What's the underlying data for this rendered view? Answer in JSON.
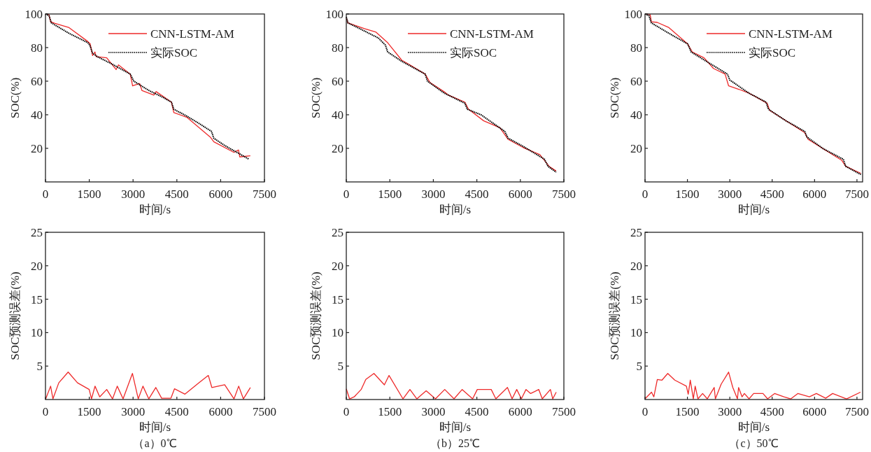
{
  "chart_data": [
    {
      "type": "line",
      "xlabel": "时间/s",
      "ylabel": "SOC(%)",
      "xlim": [
        0,
        7500
      ],
      "ylim": [
        0,
        100
      ],
      "xticks": [
        0,
        1500,
        3000,
        4500,
        6000,
        7500
      ],
      "yticks": [
        20,
        40,
        60,
        80,
        100
      ],
      "legend": "top right",
      "series": [
        {
          "name": "CNN-LSTM-AM",
          "color": "#ee2a2a",
          "line_style": "solid",
          "x": [
            0,
            121,
            177,
            323,
            806,
            1452,
            1532,
            1613,
            1694,
            1734,
            2097,
            2419,
            2500,
            2903,
            2984,
            3226,
            3306,
            3710,
            3790,
            4315,
            4395,
            4839,
            5645,
            5766,
            6452,
            6613,
            6653,
            7016
          ],
          "values": [
            100,
            99.6,
            95.4,
            94.4,
            91.9,
            83.6,
            82.2,
            75.3,
            77.4,
            74.6,
            73.9,
            66.9,
            69.7,
            64.2,
            57.2,
            58.6,
            54.4,
            51.7,
            53.8,
            47.5,
            41.3,
            38.5,
            26.7,
            23.9,
            17.6,
            19,
            14.9,
            15.6
          ]
        },
        {
          "name": "实际SOC",
          "color": "#000000",
          "line_style": "dotted",
          "x": [
            0,
            121,
            202,
            806,
            1452,
            1516,
            1613,
            1774,
            2258,
            2903,
            3024,
            3548,
            4032,
            4315,
            4395,
            4839,
            5242,
            5685,
            5766,
            6129,
            6452,
            6976
          ],
          "values": [
            100,
            98.9,
            94.7,
            88.5,
            82.9,
            81.5,
            76.7,
            74.6,
            70.4,
            64.2,
            60,
            54.4,
            50.3,
            47.5,
            43.3,
            39.2,
            35,
            30.1,
            26,
            21.8,
            18.6,
            13.5
          ]
        }
      ]
    },
    {
      "type": "line",
      "xlabel": "时间/s",
      "ylabel": "SOC(%)",
      "xlim": [
        0,
        7500
      ],
      "ylim": [
        0,
        100
      ],
      "xticks": [
        0,
        1500,
        3000,
        4500,
        6000,
        7500
      ],
      "yticks": [
        20,
        40,
        60,
        80,
        100
      ],
      "legend": "top right",
      "series": [
        {
          "name": "CNN-LSTM-AM",
          "color": "#ee2a2a",
          "line_style": "solid",
          "x": [
            0,
            56,
            621,
            1024,
            1427,
            1911,
            2194,
            2718,
            2879,
            3363,
            3524,
            4089,
            4210,
            4734,
            5298,
            5581,
            6105,
            6669,
            6992,
            7234
          ],
          "values": [
            97.5,
            94.7,
            91.3,
            89.2,
            82.9,
            72.5,
            69.7,
            64.2,
            59.3,
            53.8,
            51.7,
            47.5,
            43.3,
            36.4,
            32.2,
            25.3,
            20.4,
            16.3,
            9.3,
            6.5
          ]
        },
        {
          "name": "实际SOC",
          "color": "#000000",
          "line_style": "dotted",
          "x": [
            0,
            56,
            460,
            1105,
            1347,
            1427,
            1911,
            2718,
            2798,
            3363,
            4089,
            4169,
            4653,
            5460,
            5581,
            6105,
            6831,
            6952,
            7234
          ],
          "values": [
            98.2,
            94.7,
            91.3,
            85.7,
            81.5,
            77.4,
            71.8,
            64.2,
            60,
            53,
            46.8,
            43.3,
            39.9,
            30.1,
            26,
            21.1,
            13.5,
            9.3,
            5.8
          ]
        }
      ]
    },
    {
      "type": "line",
      "xlabel": "时间/s",
      "ylabel": "SOC(%)",
      "xlim": [
        0,
        7700
      ],
      "ylim": [
        0,
        100
      ],
      "xticks": [
        0,
        1500,
        3000,
        4500,
        6000,
        7500
      ],
      "yticks": [
        20,
        40,
        60,
        80,
        100
      ],
      "legend": "top right",
      "series": [
        {
          "name": "CNN-LSTM-AM",
          "color": "#ee2a2a",
          "line_style": "solid",
          "x": [
            0,
            182,
            224,
            431,
            845,
            1508,
            1674,
            2088,
            2419,
            2833,
            2958,
            3330,
            3663,
            4325,
            4408,
            5650,
            5774,
            6967,
            7100,
            7639
          ],
          "values": [
            100,
            99.6,
            95.4,
            95,
            91.9,
            82.2,
            77.4,
            73.9,
            67.6,
            64.2,
            57.2,
            55.1,
            53,
            46.8,
            42.6,
            29.4,
            25.3,
            12.8,
            9.3,
            5.1
          ]
        },
        {
          "name": "实际SOC",
          "color": "#000000",
          "line_style": "dotted",
          "x": [
            0,
            141,
            224,
            845,
            1508,
            1633,
            2171,
            2917,
            3000,
            3663,
            4284,
            4367,
            4988,
            5650,
            5733,
            6313,
            7017,
            7100,
            7639
          ],
          "values": [
            100,
            98.9,
            94.7,
            88.5,
            82.2,
            77.4,
            71.8,
            64.2,
            60.7,
            53,
            47.5,
            43.3,
            36.4,
            30.1,
            26.7,
            19.7,
            13.5,
            9.3,
            4.4
          ]
        }
      ]
    },
    {
      "type": "line",
      "xlabel": "时间/s",
      "ylabel": "SOC预测误差(%)",
      "xlim": [
        0,
        7500
      ],
      "ylim": [
        0,
        25
      ],
      "xticks": [
        0,
        1500,
        3000,
        4500,
        6000,
        7500
      ],
      "yticks": [
        5,
        10,
        15,
        20,
        25
      ],
      "annotations": [
        "（a）0℃"
      ],
      "series": [
        {
          "color": "#ee2a2a",
          "line_style": "solid",
          "x": [
            0,
            176,
            256,
            456,
            777,
            1097,
            1497,
            1577,
            1697,
            1858,
            2098,
            2298,
            2458,
            2658,
            2978,
            3178,
            3338,
            3538,
            3778,
            3978,
            4298,
            4418,
            4778,
            5258,
            5578,
            5698,
            6138,
            6458,
            6618,
            6778,
            7018
          ],
          "values": [
            0,
            2.0,
            0.1,
            2.5,
            4.1,
            2.5,
            1.5,
            0.1,
            2.0,
            0.4,
            1.5,
            0.1,
            2.0,
            0.1,
            3.9,
            0.1,
            2.0,
            0.1,
            1.8,
            0.2,
            0.2,
            1.6,
            0.8,
            2.5,
            3.6,
            1.8,
            2.2,
            0.1,
            2.0,
            0.1,
            1.8
          ]
        }
      ]
    },
    {
      "type": "line",
      "xlabel": "时间/s",
      "ylabel": "SOC预测误差(%)",
      "xlim": [
        0,
        7500
      ],
      "ylim": [
        0,
        25
      ],
      "xticks": [
        0,
        1500,
        3000,
        4500,
        6000,
        7500
      ],
      "yticks": [
        5,
        10,
        15,
        20,
        25
      ],
      "annotations": [
        "（b）25℃"
      ],
      "series": [
        {
          "color": "#ee2a2a",
          "line_style": "solid",
          "x": [
            0,
            112,
            272,
            512,
            673,
            953,
            1313,
            1473,
            1953,
            2193,
            2433,
            2753,
            3073,
            3393,
            3714,
            3994,
            4354,
            4515,
            4995,
            5155,
            5555,
            5715,
            5875,
            6035,
            6195,
            6355,
            6635,
            6755,
            7036,
            7116,
            7236
          ],
          "values": [
            1.6,
            0.1,
            0.4,
            1.5,
            3.0,
            3.9,
            2.2,
            3.6,
            0.1,
            1.5,
            0.1,
            1.3,
            0.1,
            1.5,
            0.1,
            1.5,
            0.1,
            1.5,
            1.5,
            0.1,
            1.8,
            0.1,
            1.5,
            0.1,
            1.5,
            0.9,
            1.5,
            0.1,
            1.5,
            0.1,
            1.1
          ]
        }
      ]
    },
    {
      "type": "line",
      "xlabel": "时间/s",
      "ylabel": "SOC预测误差(%)",
      "xlim": [
        0,
        7700
      ],
      "ylim": [
        0,
        25
      ],
      "xticks": [
        0,
        1500,
        3000,
        4500,
        6000,
        7500
      ],
      "yticks": [
        5,
        10,
        15,
        20,
        25
      ],
      "annotations": [
        "（c）50℃"
      ],
      "series": [
        {
          "color": "#ee2a2a",
          "line_style": "solid",
          "x": [
            0,
            230,
            312,
            435,
            600,
            805,
            1052,
            1463,
            1528,
            1602,
            1709,
            1775,
            1873,
            2038,
            2202,
            2448,
            2490,
            2695,
            2958,
            3106,
            3270,
            3311,
            3434,
            3516,
            3681,
            3845,
            4174,
            4338,
            4585,
            4914,
            5160,
            5407,
            5818,
            6064,
            6393,
            6639,
            7132,
            7625
          ],
          "values": [
            0.1,
            1.1,
            0.4,
            3.0,
            2.9,
            3.9,
            2.9,
            2.0,
            0.8,
            2.9,
            0.1,
            2.0,
            0.1,
            0.9,
            0.1,
            1.8,
            0.1,
            2.3,
            4.1,
            1.8,
            0.1,
            1.8,
            0.4,
            0.9,
            0.1,
            0.9,
            0.9,
            0.1,
            0.9,
            0.4,
            0.1,
            0.9,
            0.4,
            0.9,
            0.2,
            0.9,
            0.1,
            1.1
          ]
        }
      ]
    }
  ]
}
